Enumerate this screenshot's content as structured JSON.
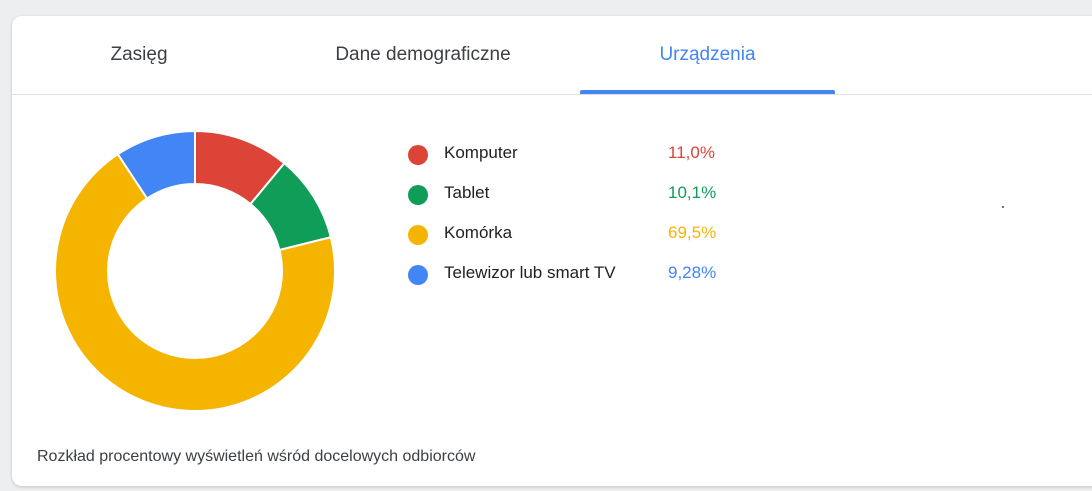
{
  "tabs": [
    {
      "label": "Zasięg",
      "active": false
    },
    {
      "label": "Dane demograficzne",
      "active": false
    },
    {
      "label": "Urządzenia",
      "active": true
    }
  ],
  "colors": {
    "accent": "#4285f4",
    "komputer": "#db4437",
    "tablet": "#0f9d58",
    "komorka": "#f4b400",
    "telewizor": "#4285f4"
  },
  "caption": "Rozkład procentowy wyświetleń wśród docelowych odbiorców",
  "chart_data": {
    "type": "pie",
    "donut": true,
    "categories": [
      "Komputer",
      "Tablet",
      "Komórka",
      "Telewizor lub smart TV"
    ],
    "values": [
      11.0,
      10.1,
      69.5,
      9.28
    ],
    "value_labels": [
      "11,0%",
      "10,1%",
      "69,5%",
      "9,28%"
    ],
    "colors": [
      "#db4437",
      "#0f9d58",
      "#f4b400",
      "#4285f4"
    ],
    "unit": "%",
    "legend": "right"
  }
}
